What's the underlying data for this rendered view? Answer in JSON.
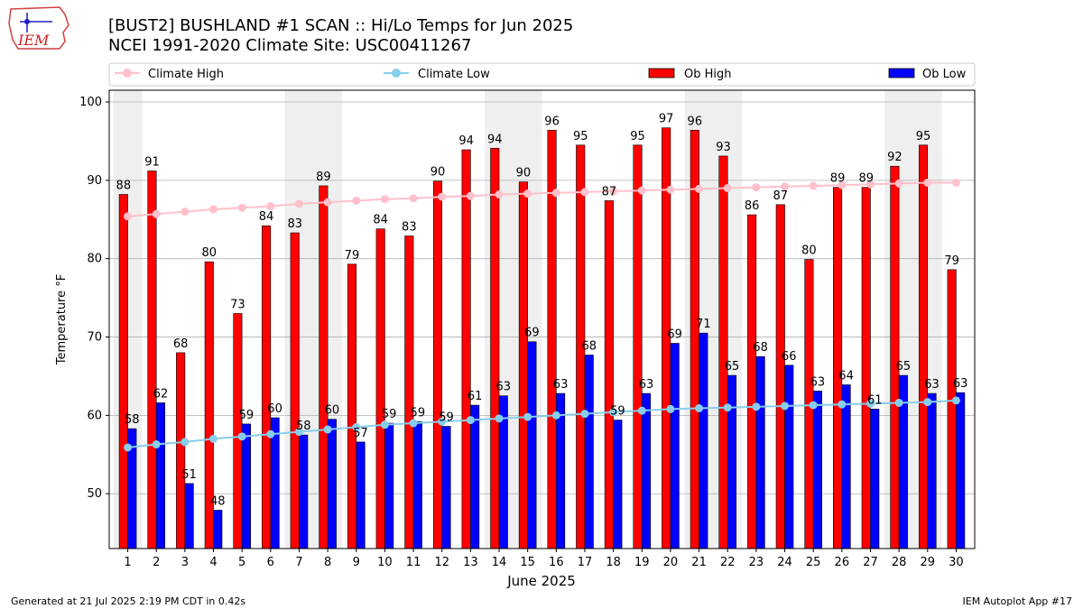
{
  "header": {
    "title_line1": "[BUST2] BUSHLAND #1 SCAN :: Hi/Lo Temps for Jun 2025",
    "title_line2": "NCEI 1991-2020 Climate Site: USC00411267"
  },
  "logo": {
    "text": "IEM"
  },
  "footer": {
    "left": "Generated at 21 Jul 2025 2:19 PM CDT in 0.42s",
    "right": "IEM Autoplot App #17"
  },
  "colors": {
    "ob_high": "#ff0000",
    "ob_low": "#0000ff",
    "climate_high": "#ffc0cb",
    "climate_low": "#87ceeb",
    "weekend_band": "#efefef"
  },
  "chart_data": {
    "type": "bar",
    "xlabel": "June 2025",
    "ylabel": "Temperature °F",
    "ylim": [
      43,
      101.5
    ],
    "yticks": [
      50,
      60,
      70,
      80,
      90,
      100
    ],
    "grid": true,
    "legend_position": "top",
    "categories": [
      "1",
      "2",
      "3",
      "4",
      "5",
      "6",
      "7",
      "8",
      "9",
      "10",
      "11",
      "12",
      "13",
      "14",
      "15",
      "16",
      "17",
      "18",
      "19",
      "20",
      "21",
      "22",
      "23",
      "24",
      "25",
      "26",
      "27",
      "28",
      "29",
      "30"
    ],
    "weekend_bands": [
      [
        1,
        1
      ],
      [
        7,
        8
      ],
      [
        14,
        15
      ],
      [
        21,
        22
      ],
      [
        28,
        29
      ]
    ],
    "series": [
      {
        "name": "Ob High",
        "kind": "bar",
        "values": [
          88.2,
          91.2,
          68,
          79.6,
          73,
          84.2,
          83.3,
          89.3,
          79.3,
          83.8,
          82.9,
          89.9,
          93.9,
          94.1,
          89.8,
          96.4,
          94.5,
          87.4,
          94.5,
          96.7,
          96.4,
          93.1,
          85.6,
          86.9,
          79.9,
          89.1,
          89.1,
          91.8,
          94.5,
          78.6
        ]
      },
      {
        "name": "Ob Low",
        "kind": "bar",
        "values": [
          58.3,
          61.6,
          51.3,
          47.9,
          58.9,
          59.7,
          57.5,
          59.5,
          56.6,
          59,
          59.2,
          58.6,
          61.3,
          62.5,
          69.4,
          62.8,
          67.7,
          59.4,
          62.8,
          69.2,
          70.5,
          65.1,
          67.5,
          66.4,
          63.1,
          63.9,
          60.8,
          65.1,
          62.8,
          62.9
        ]
      },
      {
        "name": "Climate High",
        "kind": "line",
        "values": [
          85.4,
          85.7,
          86.0,
          86.3,
          86.5,
          86.7,
          87.0,
          87.2,
          87.4,
          87.6,
          87.7,
          87.9,
          88.0,
          88.2,
          88.3,
          88.4,
          88.5,
          88.6,
          88.7,
          88.8,
          88.9,
          89.0,
          89.1,
          89.2,
          89.3,
          89.4,
          89.5,
          89.6,
          89.7,
          89.7
        ]
      },
      {
        "name": "Climate Low",
        "kind": "line",
        "values": [
          55.9,
          56.3,
          56.6,
          57.0,
          57.3,
          57.6,
          57.9,
          58.2,
          58.5,
          58.8,
          59.0,
          59.2,
          59.4,
          59.6,
          59.8,
          60.0,
          60.2,
          60.4,
          60.6,
          60.8,
          60.9,
          61.0,
          61.1,
          61.2,
          61.3,
          61.4,
          61.5,
          61.6,
          61.7,
          61.9
        ]
      }
    ]
  }
}
